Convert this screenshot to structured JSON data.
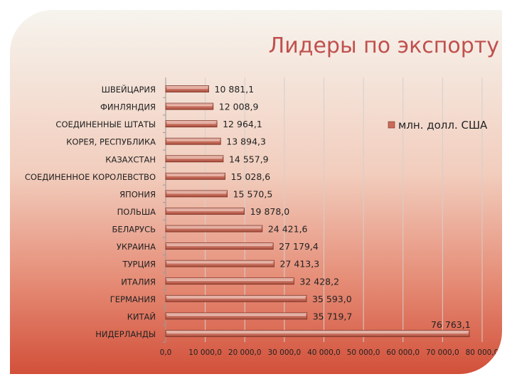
{
  "slide_title": "Лидеры по экспорту",
  "colors": {
    "bar_fill": "#c96b59",
    "bar_highlight": "#ffffff",
    "title": "#c0504d",
    "label": "#222222",
    "grid": "#d4cfcb"
  },
  "chart_data": {
    "type": "bar",
    "orientation": "horizontal",
    "title": "Лидеры по экспорту",
    "categories": [
      "ШВЕЙЦАРИЯ",
      "ФИНЛЯНДИЯ",
      "СОЕДИНЕННЫЕ ШТАТЫ",
      "КОРЕЯ, РЕСПУБЛИКА",
      "КАЗАХСТАН",
      "СОЕДИНЕННОЕ КОРОЛЕВСТВО",
      "ЯПОНИЯ",
      "ПОЛЬША",
      "БЕЛАРУСЬ",
      "УКРАИНА",
      "ТУРЦИЯ",
      "ИТАЛИЯ",
      "ГЕРМАНИЯ",
      "КИТАЙ",
      "НИДЕРЛАНДЫ"
    ],
    "series": [
      {
        "name": "млн. долл. США",
        "values": [
          10881.1,
          12008.9,
          12964.1,
          13894.3,
          14557.9,
          15028.6,
          15570.5,
          19878.0,
          24421.6,
          27179.4,
          27413.3,
          32428.2,
          35593.0,
          35719.7,
          76763.1
        ]
      }
    ],
    "data_labels": [
      "10 881,1",
      "12 008,9",
      "12 964,1",
      "13 894,3",
      "14 557,9",
      "15 028,6",
      "15 570,5",
      "19 878,0",
      "24 421,6",
      "27 179,4",
      "27 413,3",
      "32 428,2",
      "35 593,0",
      "35 719,7",
      "76 763,1"
    ],
    "x_ticks": [
      0,
      10000,
      20000,
      30000,
      40000,
      50000,
      60000,
      70000,
      80000
    ],
    "x_tick_labels": [
      "0,0",
      "10 000,0",
      "20 000,0",
      "30 000,0",
      "40 000,0",
      "50 000,0",
      "60 000,0",
      "70 000,0",
      "80 000,0"
    ],
    "xlim": [
      0,
      80000
    ],
    "xlabel": "",
    "ylabel": "",
    "grid": true,
    "legend_position": "top-right"
  }
}
